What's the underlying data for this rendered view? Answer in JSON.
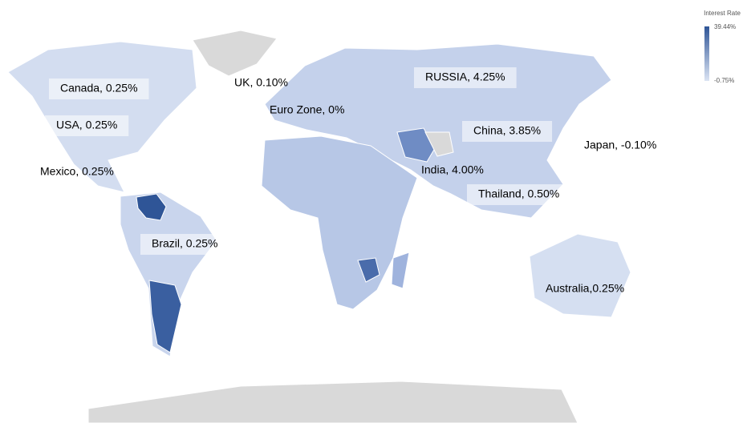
{
  "legend": {
    "title": "Interest Rate",
    "max": "39.44%",
    "min": "-0.75%"
  },
  "labels": [
    "Canada, 0.25%",
    "UK, 0.10%",
    "RUSSIA, 4.25%",
    "USA, 0.25%",
    "Euro Zone, 0%",
    "China, 3.85%",
    "Japan, -0.10%",
    "Mexico, 0.25%",
    "India, 4.00%",
    "Thailand, 0.50%",
    "Brazil, 0.25%",
    "Australia,0.25%"
  ]
}
